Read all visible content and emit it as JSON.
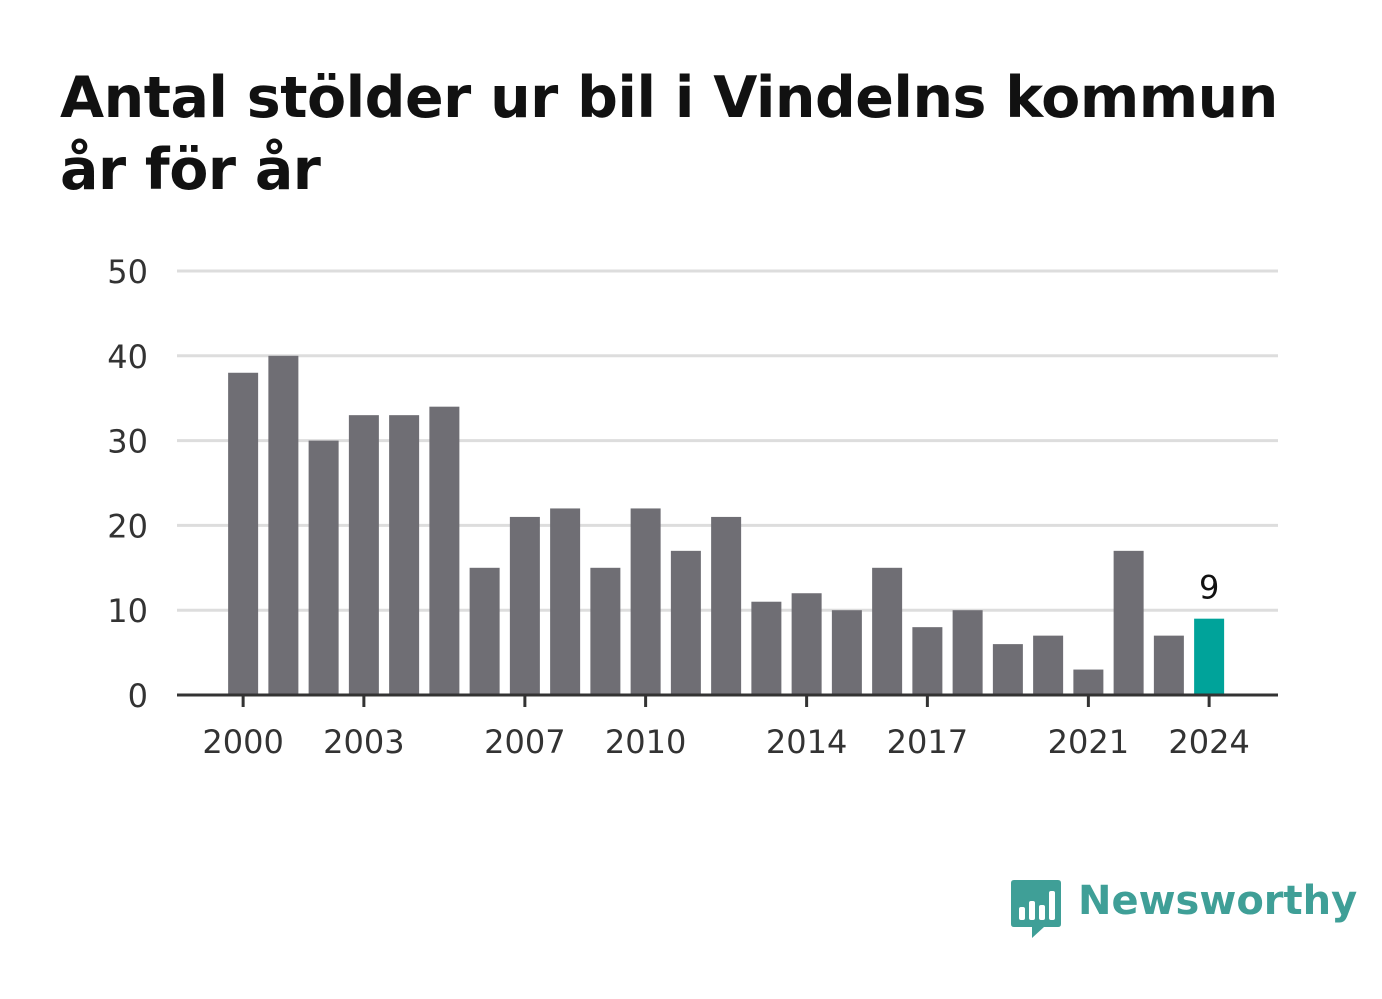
{
  "title": "Antal stölder ur bil i Vindelns kommun år för år",
  "brand": {
    "name": "Newsworthy",
    "icon": "newsworthy-logo-icon",
    "color": "#3f9f97"
  },
  "colors": {
    "bar": "#6f6e74",
    "highlight": "#00a39a",
    "grid": "#dddddd",
    "axis": "#333333"
  },
  "chart_data": {
    "type": "bar",
    "title": "Antal stölder ur bil i Vindelns kommun år för år",
    "xlabel": "",
    "ylabel": "",
    "categories": [
      2000,
      2001,
      2002,
      2003,
      2004,
      2005,
      2006,
      2007,
      2008,
      2009,
      2010,
      2011,
      2012,
      2013,
      2014,
      2015,
      2016,
      2017,
      2018,
      2019,
      2020,
      2021,
      2022,
      2023,
      2024
    ],
    "values": [
      38,
      40,
      30,
      33,
      33,
      34,
      15,
      21,
      22,
      15,
      22,
      17,
      21,
      11,
      12,
      10,
      15,
      8,
      10,
      6,
      7,
      3,
      17,
      7,
      9
    ],
    "xticks": [
      "2000",
      "2003",
      "2007",
      "2010",
      "2014",
      "2017",
      "2021",
      "2024"
    ],
    "yticks": [
      "0",
      "10",
      "20",
      "30",
      "40",
      "50"
    ],
    "ylim": [
      0,
      50
    ],
    "grid": true,
    "legend": "none",
    "highlight": {
      "category": 2024,
      "label": "9"
    }
  }
}
